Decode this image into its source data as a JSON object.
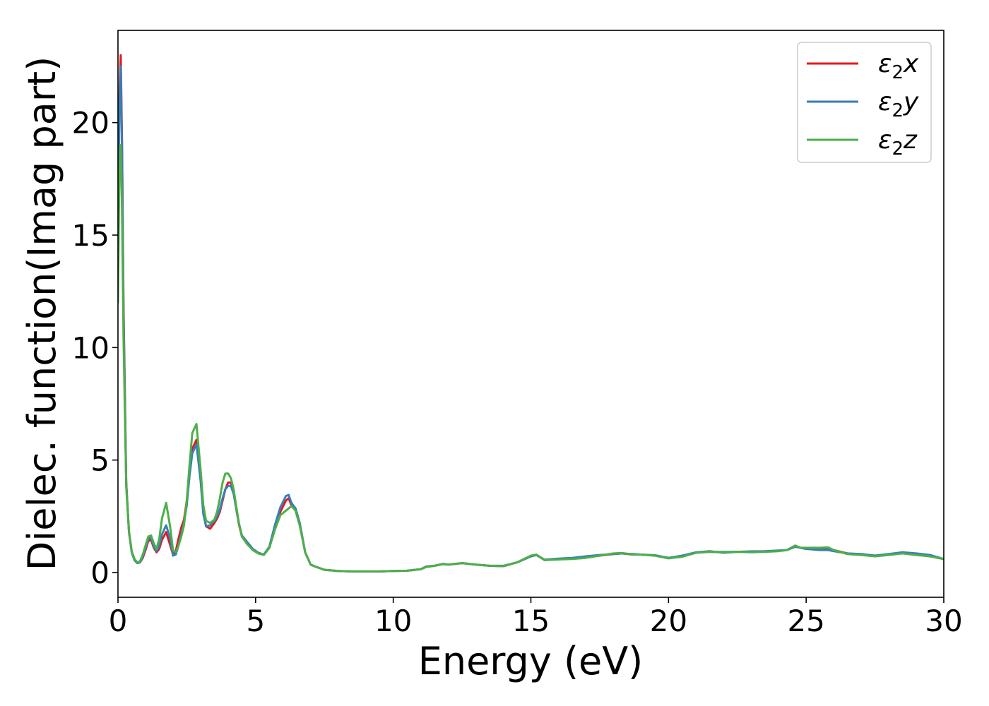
{
  "chart_data": {
    "type": "line",
    "title": "",
    "xlabel": "Energy (eV)",
    "ylabel": "Dielec. function(Imag part)",
    "xlim": [
      0,
      30
    ],
    "ylim": [
      -1.1,
      24.1
    ],
    "xticks": [
      0,
      5,
      10,
      15,
      20,
      25,
      30
    ],
    "yticks": [
      0,
      5,
      10,
      15,
      20
    ],
    "grid": false,
    "legend_position": "top-right",
    "series": [
      {
        "name": "ε2x",
        "legend_base": "ε",
        "legend_sub": "2",
        "legend_var": "x",
        "color": "#e41a1c",
        "x": [
          0,
          0.05,
          0.1,
          0.15,
          0.2,
          0.3,
          0.4,
          0.5,
          0.6,
          0.7,
          0.8,
          0.9,
          1.0,
          1.1,
          1.2,
          1.3,
          1.4,
          1.5,
          1.6,
          1.75,
          1.9,
          2.0,
          2.1,
          2.2,
          2.3,
          2.4,
          2.5,
          2.6,
          2.7,
          2.85,
          3.0,
          3.1,
          3.2,
          3.35,
          3.5,
          3.6,
          3.7,
          3.8,
          3.9,
          4.0,
          4.1,
          4.2,
          4.3,
          4.4,
          4.5,
          4.7,
          4.9,
          5.1,
          5.3,
          5.5,
          5.7,
          5.9,
          6.1,
          6.2,
          6.3,
          6.45,
          6.6,
          6.8,
          7.0,
          7.2,
          7.5,
          8.0,
          8.5,
          9.0,
          9.5,
          10.0,
          10.5,
          11.0,
          11.2,
          11.5,
          11.8,
          12.0,
          12.5,
          13.0,
          13.5,
          14.0,
          14.5,
          15.0,
          15.2,
          15.5,
          16.0,
          16.5,
          17.0,
          17.5,
          18.0,
          18.3,
          18.7,
          19.0,
          19.5,
          20.0,
          20.5,
          21.0,
          21.5,
          22.0,
          22.5,
          23.0,
          23.5,
          24.0,
          24.3,
          24.6,
          24.8,
          25.0,
          25.5,
          25.8,
          26.0,
          26.5,
          27.0,
          27.5,
          28.0,
          28.5,
          29.0,
          29.5,
          30.0
        ],
        "values": [
          14.0,
          21.0,
          23.0,
          19.0,
          12.0,
          4.0,
          1.8,
          0.9,
          0.55,
          0.42,
          0.45,
          0.65,
          1.0,
          1.4,
          1.45,
          1.1,
          0.9,
          1.05,
          1.45,
          1.8,
          1.2,
          0.8,
          0.95,
          1.5,
          2.0,
          2.35,
          3.2,
          4.5,
          5.5,
          5.9,
          4.2,
          2.7,
          2.05,
          1.95,
          2.2,
          2.4,
          2.7,
          3.2,
          3.7,
          4.0,
          4.0,
          3.6,
          2.8,
          2.1,
          1.6,
          1.3,
          1.0,
          0.85,
          0.8,
          1.1,
          2.0,
          2.7,
          3.2,
          3.3,
          3.0,
          2.85,
          2.2,
          0.9,
          0.35,
          0.25,
          0.12,
          0.07,
          0.05,
          0.05,
          0.05,
          0.07,
          0.08,
          0.15,
          0.25,
          0.3,
          0.38,
          0.35,
          0.42,
          0.35,
          0.3,
          0.28,
          0.45,
          0.72,
          0.78,
          0.55,
          0.6,
          0.63,
          0.68,
          0.75,
          0.82,
          0.85,
          0.8,
          0.8,
          0.75,
          0.65,
          0.72,
          0.88,
          0.92,
          0.9,
          0.92,
          0.92,
          0.94,
          0.96,
          1.0,
          1.15,
          1.1,
          1.05,
          1.05,
          1.1,
          1.0,
          0.85,
          0.8,
          0.75,
          0.8,
          0.88,
          0.8,
          0.72,
          0.6
        ]
      },
      {
        "name": "ε2y",
        "legend_base": "ε",
        "legend_sub": "2",
        "legend_var": "y",
        "color": "#377eb8",
        "x": [
          0,
          0.05,
          0.1,
          0.15,
          0.2,
          0.3,
          0.4,
          0.5,
          0.6,
          0.7,
          0.8,
          0.9,
          1.0,
          1.1,
          1.2,
          1.3,
          1.4,
          1.5,
          1.6,
          1.75,
          1.9,
          2.0,
          2.1,
          2.2,
          2.3,
          2.4,
          2.5,
          2.6,
          2.7,
          2.85,
          3.0,
          3.1,
          3.2,
          3.35,
          3.5,
          3.6,
          3.7,
          3.8,
          3.9,
          4.0,
          4.1,
          4.2,
          4.3,
          4.4,
          4.5,
          4.7,
          4.9,
          5.1,
          5.3,
          5.5,
          5.7,
          5.9,
          6.1,
          6.2,
          6.3,
          6.45,
          6.6,
          6.8,
          7.0,
          7.2,
          7.5,
          8.0,
          8.5,
          9.0,
          9.5,
          10.0,
          10.5,
          11.0,
          11.2,
          11.5,
          11.8,
          12.0,
          12.5,
          13.0,
          13.5,
          14.0,
          14.5,
          15.0,
          15.2,
          15.5,
          16.0,
          16.5,
          17.0,
          17.5,
          18.0,
          18.3,
          18.7,
          19.0,
          19.5,
          20.0,
          20.5,
          21.0,
          21.5,
          22.0,
          22.5,
          23.0,
          23.5,
          24.0,
          24.3,
          24.6,
          24.8,
          25.0,
          25.5,
          25.8,
          26.0,
          26.5,
          27.0,
          27.5,
          28.0,
          28.5,
          29.0,
          29.5,
          30.0
        ],
        "values": [
          13.5,
          20.5,
          22.5,
          18.5,
          11.5,
          3.9,
          1.8,
          0.9,
          0.55,
          0.42,
          0.45,
          0.7,
          1.1,
          1.5,
          1.55,
          1.15,
          0.95,
          1.2,
          1.7,
          2.1,
          1.5,
          0.75,
          0.8,
          1.2,
          1.7,
          2.2,
          3.0,
          4.3,
          5.3,
          5.7,
          4.1,
          2.6,
          2.05,
          2.1,
          2.3,
          2.5,
          2.8,
          3.3,
          3.7,
          3.85,
          3.85,
          3.5,
          2.8,
          2.15,
          1.65,
          1.35,
          1.05,
          0.88,
          0.8,
          1.15,
          2.1,
          2.9,
          3.4,
          3.45,
          3.1,
          2.85,
          2.2,
          0.9,
          0.35,
          0.25,
          0.12,
          0.07,
          0.05,
          0.05,
          0.05,
          0.07,
          0.08,
          0.15,
          0.27,
          0.3,
          0.38,
          0.35,
          0.42,
          0.35,
          0.3,
          0.3,
          0.45,
          0.72,
          0.78,
          0.57,
          0.62,
          0.65,
          0.72,
          0.78,
          0.82,
          0.85,
          0.82,
          0.8,
          0.77,
          0.65,
          0.75,
          0.9,
          0.95,
          0.88,
          0.92,
          0.94,
          0.95,
          0.98,
          1.0,
          1.15,
          1.1,
          1.05,
          1.0,
          1.0,
          0.95,
          0.85,
          0.82,
          0.75,
          0.82,
          0.9,
          0.85,
          0.78,
          0.6
        ]
      },
      {
        "name": "ε2z",
        "legend_base": "ε",
        "legend_sub": "2",
        "legend_var": "z",
        "color": "#4daf4a",
        "x": [
          0,
          0.05,
          0.1,
          0.15,
          0.2,
          0.3,
          0.4,
          0.5,
          0.6,
          0.7,
          0.8,
          0.9,
          1.0,
          1.1,
          1.2,
          1.3,
          1.4,
          1.5,
          1.6,
          1.75,
          1.9,
          2.0,
          2.1,
          2.2,
          2.3,
          2.4,
          2.5,
          2.6,
          2.7,
          2.85,
          3.0,
          3.1,
          3.2,
          3.35,
          3.5,
          3.6,
          3.7,
          3.8,
          3.9,
          4.0,
          4.1,
          4.2,
          4.3,
          4.4,
          4.5,
          4.7,
          4.9,
          5.1,
          5.3,
          5.5,
          5.7,
          5.9,
          6.1,
          6.2,
          6.3,
          6.45,
          6.6,
          6.8,
          7.0,
          7.2,
          7.5,
          8.0,
          8.5,
          9.0,
          9.5,
          10.0,
          10.5,
          11.0,
          11.2,
          11.5,
          11.8,
          12.0,
          12.5,
          13.0,
          13.5,
          14.0,
          14.5,
          15.0,
          15.2,
          15.5,
          16.0,
          16.5,
          17.0,
          17.5,
          18.0,
          18.3,
          18.7,
          19.0,
          19.5,
          20.0,
          20.5,
          21.0,
          21.5,
          22.0,
          22.5,
          23.0,
          23.5,
          24.0,
          24.3,
          24.6,
          24.8,
          25.0,
          25.5,
          25.8,
          26.0,
          26.5,
          27.0,
          27.5,
          28.0,
          28.5,
          29.0,
          29.5,
          30.0
        ],
        "values": [
          12.0,
          17.5,
          19.0,
          16.0,
          10.5,
          3.8,
          1.8,
          0.95,
          0.6,
          0.45,
          0.5,
          0.8,
          1.2,
          1.6,
          1.65,
          1.3,
          1.05,
          1.5,
          2.4,
          3.1,
          2.0,
          1.0,
          0.9,
          1.2,
          1.6,
          2.1,
          3.2,
          4.8,
          6.2,
          6.6,
          4.6,
          3.0,
          2.3,
          2.2,
          2.35,
          2.7,
          3.3,
          4.0,
          4.4,
          4.4,
          4.2,
          3.7,
          2.9,
          2.15,
          1.6,
          1.25,
          1.0,
          0.85,
          0.78,
          1.1,
          1.9,
          2.55,
          2.75,
          2.85,
          2.95,
          2.75,
          2.1,
          0.9,
          0.35,
          0.25,
          0.12,
          0.07,
          0.05,
          0.05,
          0.05,
          0.07,
          0.08,
          0.15,
          0.25,
          0.3,
          0.37,
          0.35,
          0.42,
          0.35,
          0.3,
          0.28,
          0.45,
          0.75,
          0.8,
          0.55,
          0.58,
          0.6,
          0.65,
          0.75,
          0.85,
          0.87,
          0.8,
          0.8,
          0.75,
          0.63,
          0.7,
          0.88,
          0.92,
          0.92,
          0.92,
          0.9,
          0.92,
          0.95,
          1.0,
          1.2,
          1.1,
          1.1,
          1.1,
          1.12,
          1.0,
          0.82,
          0.78,
          0.72,
          0.78,
          0.85,
          0.78,
          0.72,
          0.6
        ]
      }
    ]
  }
}
